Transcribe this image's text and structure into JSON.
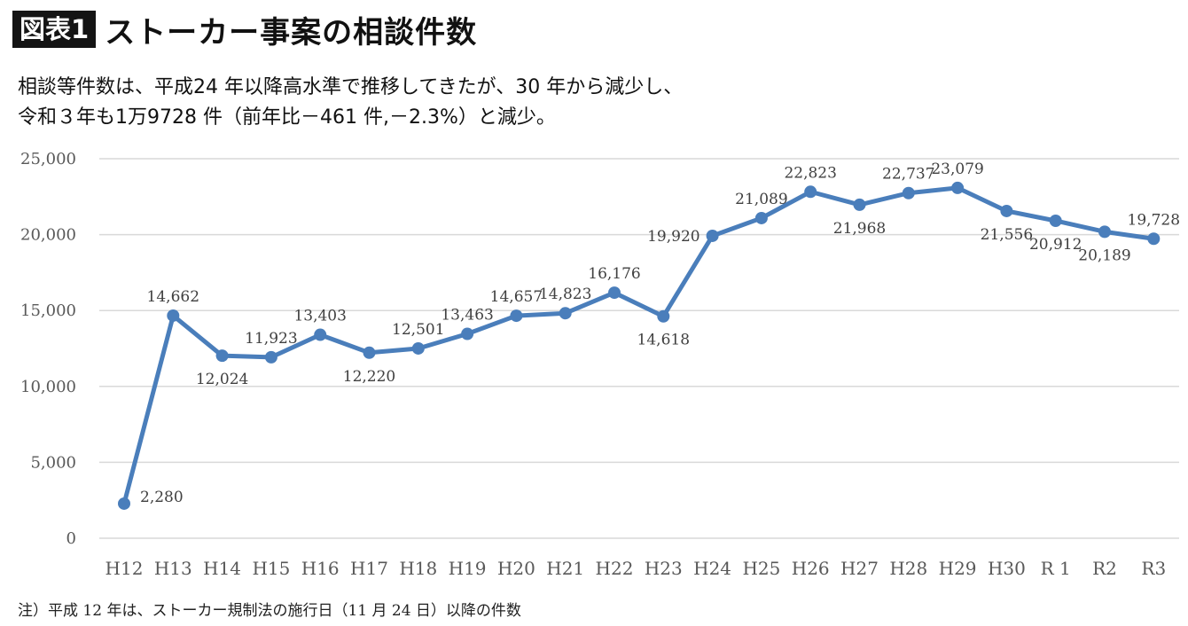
{
  "header": {
    "badge": "図表1",
    "title": "ストーカー事案の相談件数"
  },
  "description": {
    "line1": "相談等件数は、平成24 年以降高水準で推移してきたが、30 年から減少し、",
    "line2": "令和３年も1万9728 件（前年比－461 件,－2.3%）と減少。"
  },
  "note": "注）平成 12 年は、ストーカー規制法の施行日（11 月 24 日）以降の件数",
  "colors": {
    "line": "#4a7ebb",
    "grid": "#d9d9d9",
    "text": "#595959"
  },
  "chart_data": {
    "type": "line",
    "categories": [
      "H12",
      "H13",
      "H14",
      "H15",
      "H16",
      "H17",
      "H18",
      "H19",
      "H20",
      "H21",
      "H22",
      "H23",
      "H24",
      "H25",
      "H26",
      "H27",
      "H28",
      "H29",
      "H30",
      "R 1",
      "R2",
      "R3"
    ],
    "series": [
      {
        "values": [
          2280,
          14662,
          12024,
          11923,
          13403,
          12220,
          12501,
          13463,
          14657,
          14823,
          16176,
          14618,
          19920,
          21089,
          22823,
          21968,
          22737,
          23079,
          21556,
          20912,
          20189,
          19728
        ]
      }
    ],
    "data_labels": [
      "2,280",
      "14,662",
      "12,024",
      "11,923",
      "13,403",
      "12,220",
      "12,501",
      "13,463",
      "14,657",
      "14,823",
      "16,176",
      "14,618",
      "19,920",
      "21,089",
      "22,823",
      "21,968",
      "22,737",
      "23,079",
      "21,556",
      "20,912",
      "20,189",
      "19,728"
    ],
    "ylim": [
      0,
      25000
    ],
    "yticks": [
      0,
      5000,
      10000,
      15000,
      20000,
      25000
    ],
    "ytick_labels": [
      "0",
      "5,000",
      "10,000",
      "15,000",
      "20,000",
      "25,000"
    ],
    "grid": true,
    "legend": "none"
  }
}
